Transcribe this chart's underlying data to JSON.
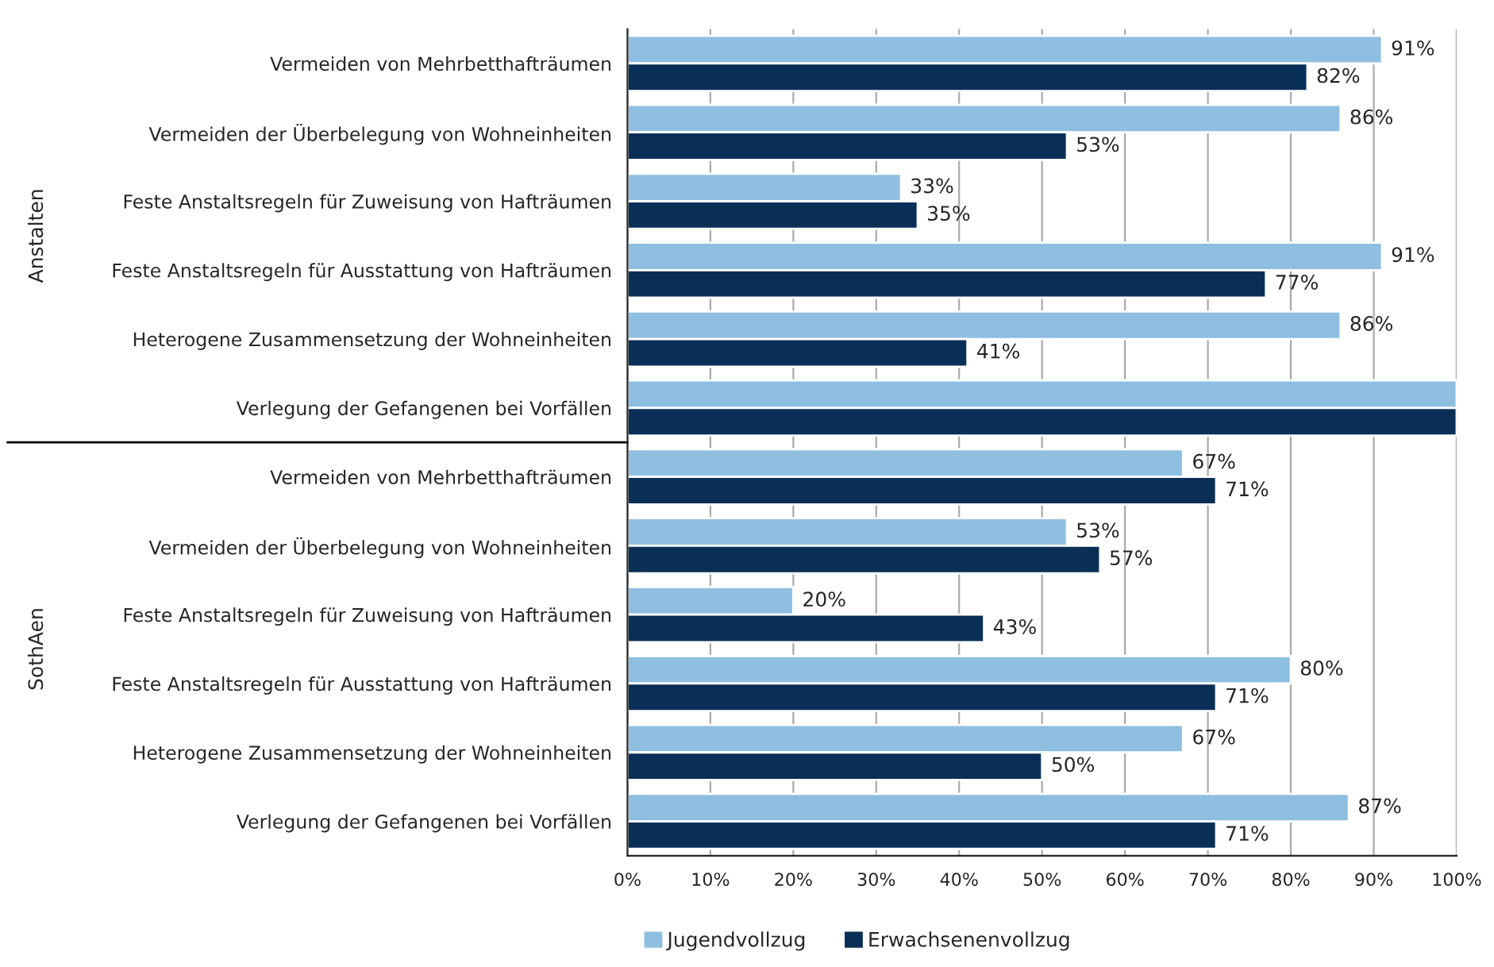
{
  "chart_data": {
    "type": "bar",
    "orientation": "horizontal",
    "categories": [
      "Vermeiden von Mehrbetthafträumen",
      "Vermeiden der Überbelegung von Wohneinheiten",
      "Feste Anstaltsregeln für Zuweisung von Hafträumen",
      "Feste Anstaltsregeln für Ausstattung von Hafträumen",
      "Heterogene Zusammensetzung der Wohneinheiten",
      "Verlegung der Gefangenen bei Vorfällen",
      "Vermeiden von Mehrbetthafträumen",
      "Vermeiden der Überbelegung von Wohneinheiten",
      "Feste Anstaltsregeln für Zuweisung von Hafträumen",
      "Feste Anstaltsregeln für Ausstattung von Hafträumen",
      "Heterogene Zusammensetzung der Wohneinheiten",
      "Verlegung der Gefangenen bei Vorfällen"
    ],
    "series": [
      {
        "name": "Jugendvollzug",
        "color": "#8fbfe0",
        "values": [
          91,
          86,
          33,
          91,
          86,
          100,
          67,
          53,
          20,
          80,
          67,
          87
        ],
        "value_labels": [
          "91%",
          "86%",
          "33%",
          "91%",
          "86%",
          null,
          "67%",
          "53%",
          "20%",
          "80%",
          "67%",
          "87%"
        ]
      },
      {
        "name": "Erwachsenenvollzug",
        "color": "#0a2f57",
        "values": [
          82,
          53,
          35,
          77,
          41,
          100,
          71,
          57,
          43,
          71,
          50,
          71
        ],
        "value_labels": [
          "82%",
          "53%",
          "35%",
          "77%",
          "41%",
          null,
          "71%",
          "57%",
          "43%",
          "71%",
          "50%",
          "71%"
        ]
      }
    ],
    "xlim": [
      0,
      100
    ],
    "xticks": [
      {
        "value": 0,
        "label": "0%"
      },
      {
        "value": 10,
        "label": "10%"
      },
      {
        "value": 20,
        "label": "20%"
      },
      {
        "value": 30,
        "label": "30%"
      },
      {
        "value": 40,
        "label": "40%"
      },
      {
        "value": 50,
        "label": "50%"
      },
      {
        "value": 60,
        "label": "60%"
      },
      {
        "value": 70,
        "label": "70%"
      },
      {
        "value": 80,
        "label": "80%"
      },
      {
        "value": 90,
        "label": "90%"
      },
      {
        "value": 100,
        "label": "100%"
      }
    ],
    "annotations": [
      "Anstalten",
      "SothAen"
    ],
    "grid": "x",
    "legend": "bottom"
  }
}
